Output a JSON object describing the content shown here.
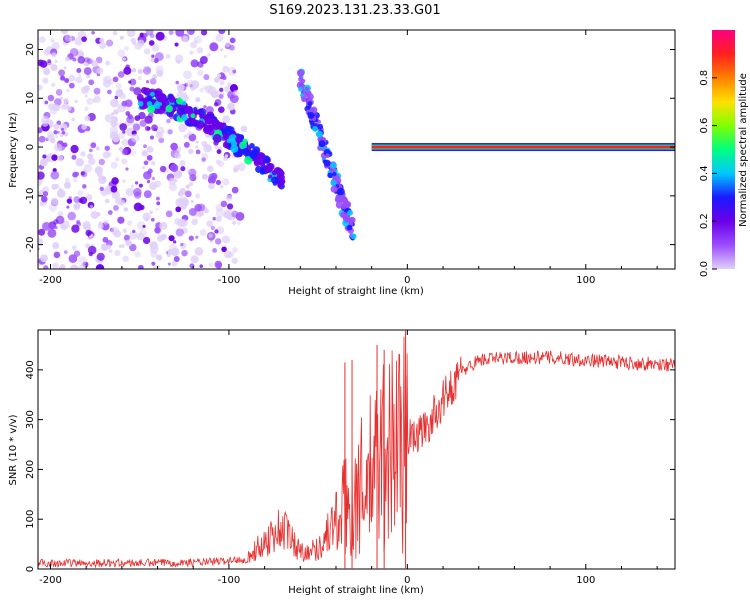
{
  "figure": {
    "title": "S169.2023.131.23.33.G01"
  },
  "chart_data": [
    {
      "type": "heatmap",
      "name": "spectrogram",
      "xlabel": "Height of straight line (km)",
      "ylabel": "Frequency (Hz)",
      "xlim": [
        -207,
        150
      ],
      "ylim": [
        -25,
        24
      ],
      "xticks": [
        -200,
        -100,
        0,
        100
      ],
      "yticks": [
        20,
        10,
        0,
        -10,
        -20
      ],
      "colorbar": {
        "label": "Normalized spectral amplitude",
        "range": [
          0,
          1
        ],
        "ticks": [
          0.0,
          0.2,
          0.4,
          0.6,
          0.8
        ],
        "colormap": [
          "#e0d0f8",
          "#9b4dff",
          "#6a00e8",
          "#1a1aff",
          "#00c8ff",
          "#00ff80",
          "#80ff00",
          "#ffe000",
          "#ff8000",
          "#ff2020",
          "#ff0080"
        ]
      },
      "features": [
        {
          "label": "background noise",
          "x": [
            -207,
            -95
          ],
          "y": [
            -25,
            24
          ],
          "level": 0.1
        },
        {
          "label": "dispersive signal",
          "x": [
            -150,
            -70
          ],
          "y_start": 10,
          "y_end": -7,
          "level": 0.25
        },
        {
          "label": "secondary branch",
          "x": [
            -60,
            -30
          ],
          "y_start": 14,
          "y_end": -18,
          "level": 0.2
        },
        {
          "label": "steady tone",
          "x": [
            -20,
            150
          ],
          "y": 0,
          "level": 0.9
        }
      ]
    },
    {
      "type": "line",
      "name": "snr",
      "xlabel": "Height of straight line (km)",
      "ylabel": "SNR (10 * v/v)",
      "xlim": [
        -207,
        150
      ],
      "ylim": [
        0,
        480
      ],
      "xticks": [
        -200,
        -100,
        0,
        100
      ],
      "yticks": [
        0,
        100,
        200,
        300,
        400
      ],
      "color": "#e83030",
      "profile": {
        "x": [
          -207,
          -150,
          -110,
          -90,
          -80,
          -70,
          -60,
          -50,
          -40,
          -30,
          -20,
          -10,
          0,
          10,
          20,
          30,
          40,
          60,
          80,
          100,
          120,
          150
        ],
        "y": [
          12,
          12,
          14,
          20,
          55,
          85,
          35,
          40,
          100,
          140,
          190,
          250,
          260,
          280,
          340,
          395,
          420,
          425,
          425,
          420,
          415,
          410
        ]
      },
      "peaks": [
        {
          "x": -35,
          "y": 415
        },
        {
          "x": -31,
          "y": 420
        },
        {
          "x": -17,
          "y": 450
        },
        {
          "x": -13,
          "y": 440
        },
        {
          "x": -1,
          "y": 480
        }
      ]
    }
  ]
}
